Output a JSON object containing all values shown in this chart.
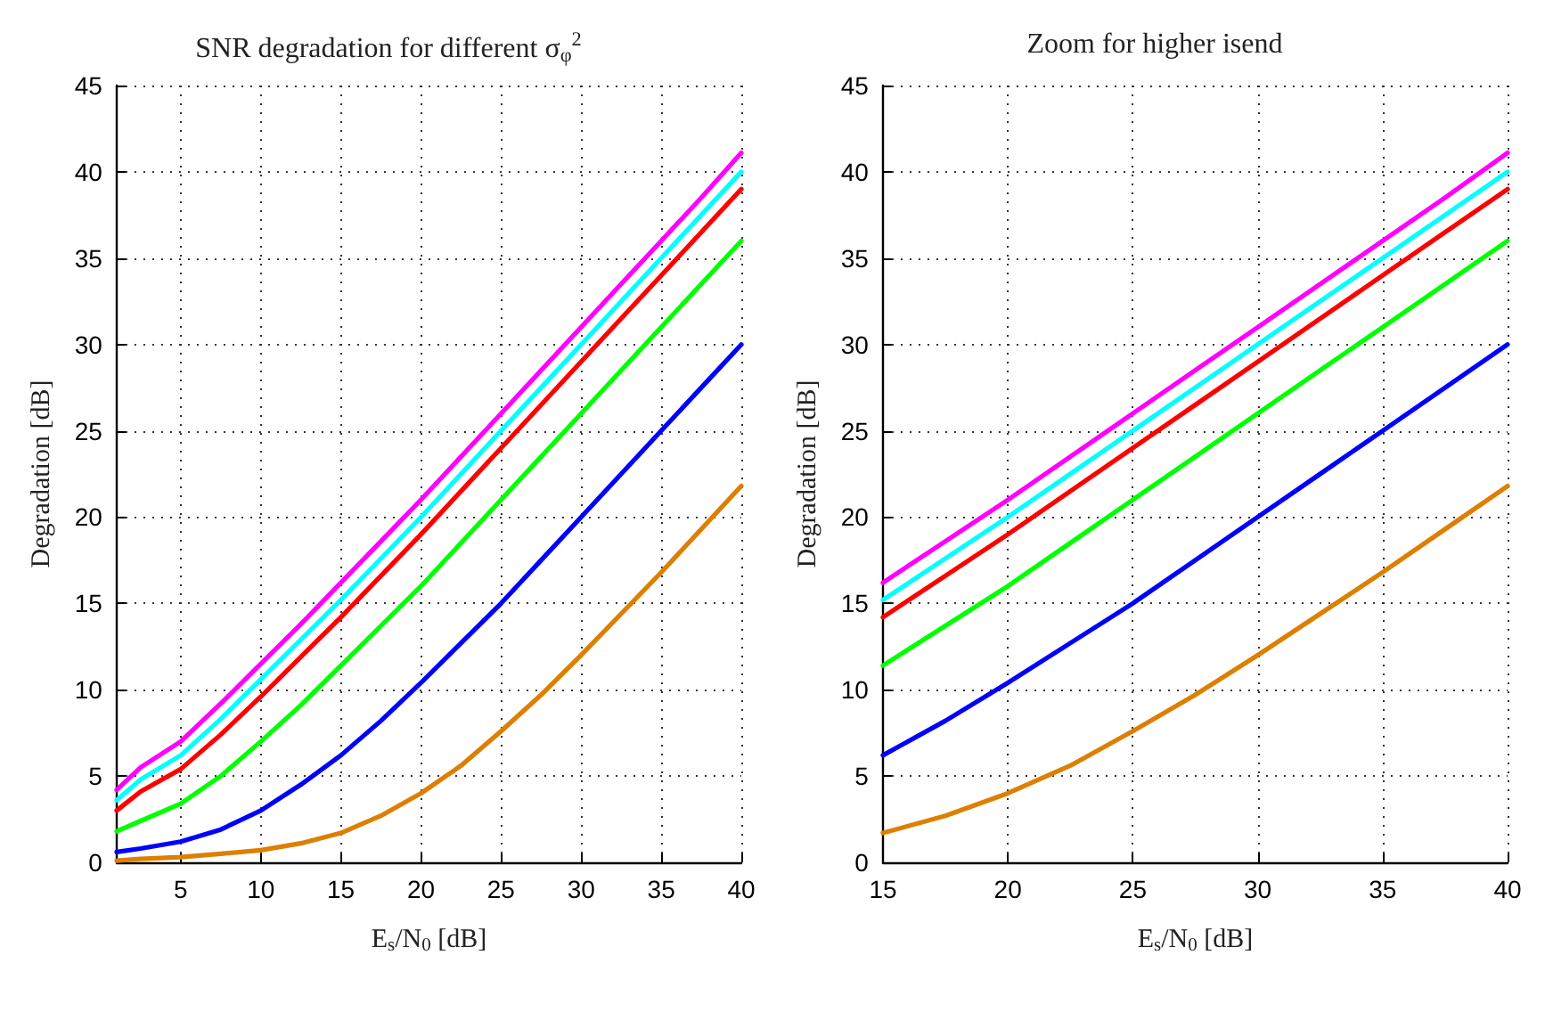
{
  "chart_data": [
    {
      "type": "line",
      "title": "SNR degradation for different σ$_{φ}$$^{2}$",
      "xlabel": "E$_{s}$/N$_{0}$ [dB]",
      "ylabel": "Degradation [dB]",
      "xlim": [
        1,
        40
      ],
      "xticks": [
        5,
        10,
        15,
        20,
        25,
        30,
        35,
        40
      ],
      "ylim": [
        0,
        45
      ],
      "yticks": [
        0,
        5,
        10,
        15,
        20,
        25,
        30,
        35,
        40,
        45
      ],
      "grid": true,
      "marker": "none",
      "line_style": "solid",
      "x": [
        1,
        2.5,
        5,
        7.5,
        10,
        12.5,
        15,
        17.5,
        20,
        22.5,
        25,
        27.5,
        30,
        32.5,
        35,
        37.5,
        40
      ],
      "series": [
        {
          "color": "#ff00ff",
          "values": [
            4.2,
            5.5,
            7,
            9.2,
            11.5,
            13.8,
            16.2,
            18.6,
            21,
            23.5,
            26,
            28.5,
            31,
            33.5,
            36,
            38.5,
            41.1
          ]
        },
        {
          "color": "#00ffff",
          "values": [
            3.6,
            4.8,
            6.2,
            8.3,
            10.6,
            12.9,
            15.2,
            17.6,
            20,
            22.5,
            25,
            27.5,
            30,
            32.5,
            35,
            37.5,
            40
          ]
        },
        {
          "color": "#ff0000",
          "values": [
            3.0,
            4.1,
            5.4,
            7.4,
            9.6,
            11.9,
            14.2,
            16.6,
            19,
            21.5,
            24,
            26.5,
            29,
            31.5,
            34,
            36.5,
            39
          ]
        },
        {
          "color": "#00ff00",
          "values": [
            1.8,
            2.4,
            3.4,
            5,
            7,
            9.1,
            11.4,
            13.7,
            16,
            18.5,
            21,
            23.5,
            26,
            28.5,
            31,
            33.5,
            36
          ]
        },
        {
          "color": "#0000ff",
          "values": [
            0.6,
            0.8,
            1.2,
            1.9,
            3,
            4.5,
            6.2,
            8.2,
            10.4,
            12.7,
            15,
            17.5,
            20,
            22.5,
            25,
            27.5,
            30
          ]
        },
        {
          "color": "#dd7f00",
          "values": [
            0.1,
            0.2,
            0.3,
            0.5,
            0.7,
            1.1,
            1.7,
            2.7,
            4,
            5.6,
            7.6,
            9.7,
            12,
            14.4,
            16.8,
            19.3,
            21.8
          ]
        }
      ]
    },
    {
      "type": "line",
      "title": "Zoom for higher isend",
      "xlabel": "E$_{s}$/N$_{0}$ [dB]",
      "ylabel": "Degradation [dB]",
      "xlim": [
        15,
        40
      ],
      "xticks": [
        15,
        20,
        25,
        30,
        35,
        40
      ],
      "ylim": [
        0,
        45
      ],
      "yticks": [
        0,
        5,
        10,
        15,
        20,
        25,
        30,
        35,
        40,
        45
      ],
      "grid": true,
      "marker": "none",
      "line_style": "solid",
      "x": [
        15,
        17.5,
        20,
        22.5,
        25,
        27.5,
        30,
        32.5,
        35,
        37.5,
        40
      ],
      "series": [
        {
          "color": "#ff00ff",
          "values": [
            16.2,
            18.6,
            21,
            23.5,
            26,
            28.5,
            31,
            33.5,
            36,
            38.5,
            41.1
          ]
        },
        {
          "color": "#00ffff",
          "values": [
            15.2,
            17.6,
            20,
            22.5,
            25,
            27.5,
            30,
            32.5,
            35,
            37.5,
            40
          ]
        },
        {
          "color": "#ff0000",
          "values": [
            14.2,
            16.6,
            19,
            21.5,
            24,
            26.5,
            29,
            31.5,
            34,
            36.5,
            39
          ]
        },
        {
          "color": "#00ff00",
          "values": [
            11.4,
            13.7,
            16,
            18.5,
            21,
            23.5,
            26,
            28.5,
            31,
            33.5,
            36
          ]
        },
        {
          "color": "#0000ff",
          "values": [
            6.2,
            8.2,
            10.4,
            12.7,
            15,
            17.5,
            20,
            22.5,
            25,
            27.5,
            30
          ]
        },
        {
          "color": "#dd7f00",
          "values": [
            1.7,
            2.7,
            4,
            5.6,
            7.6,
            9.7,
            12,
            14.4,
            16.8,
            19.3,
            21.8
          ]
        }
      ]
    }
  ]
}
